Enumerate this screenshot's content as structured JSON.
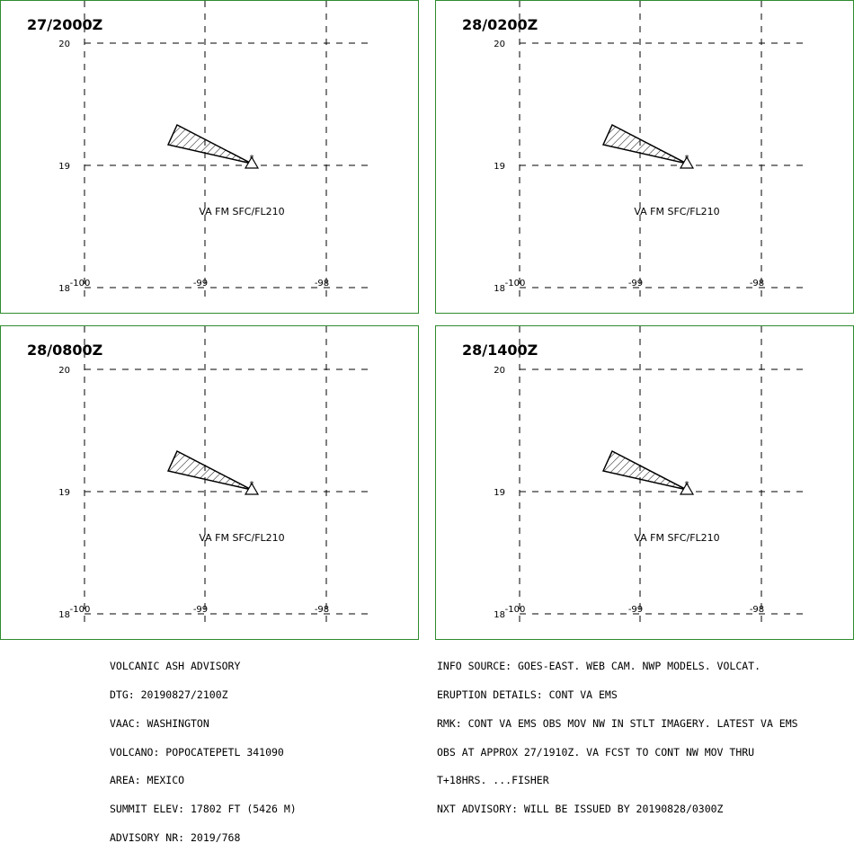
{
  "panels": [
    {
      "time_label": "27/2000Z",
      "va_label": "VA FM SFC/FL210"
    },
    {
      "time_label": "28/0200Z",
      "va_label": "VA FM SFC/FL210"
    },
    {
      "time_label": "28/0800Z",
      "va_label": "VA FM SFC/FL210"
    },
    {
      "time_label": "28/1400Z",
      "va_label": "VA FM SFC/FL210"
    }
  ],
  "map": {
    "lat_labels": [
      "20",
      "19",
      "18"
    ],
    "lon_labels": [
      "-100",
      "-99",
      "-98"
    ],
    "line_color": "#2e8b2e"
  },
  "advisory_left": [
    "VOLCANIC ASH ADVISORY",
    "DTG: 20190827/2100Z",
    "VAAC: WASHINGTON",
    "VOLCANO: POPOCATEPETL 341090",
    "AREA: MEXICO",
    "SUMMIT ELEV: 17802 FT (5426 M)",
    "ADVISORY NR: 2019/768"
  ],
  "advisory_right": [
    "INFO SOURCE: GOES-EAST. WEB CAM. NWP MODELS. VOLCAT.",
    "ERUPTION DETAILS: CONT VA EMS",
    "RMK: CONT VA EMS OBS MOV NW IN STLT IMAGERY. LATEST VA EMS",
    "OBS AT APPROX 27/1910Z. VA FCST TO CONT NW MOV THRU",
    "T+18HRS. ...FISHER",
    "NXT ADVISORY: WILL BE ISSUED BY 20190828/0300Z"
  ]
}
